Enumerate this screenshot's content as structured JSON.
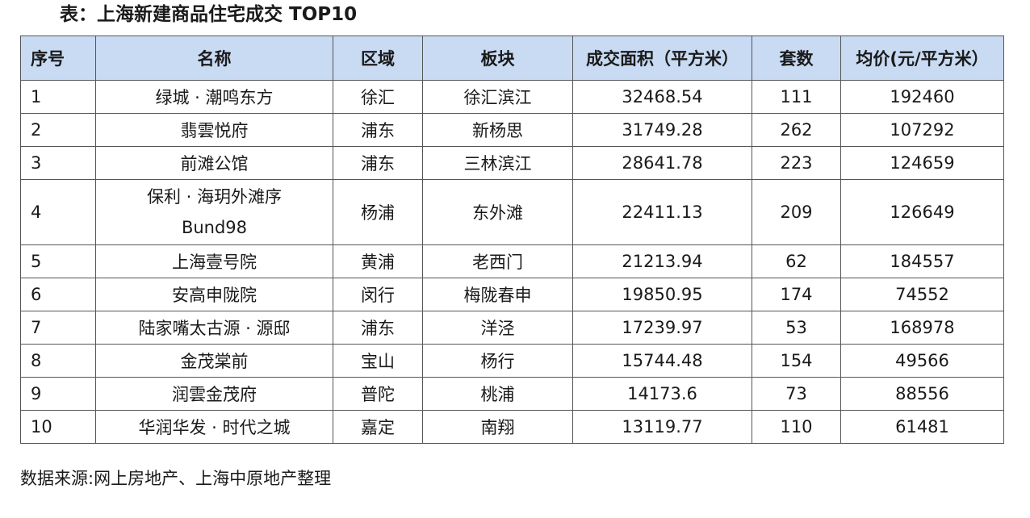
{
  "title": "表：上海新建商品住宅成交 TOP10",
  "headers": {
    "rank": "序号",
    "name": "名称",
    "district": "区域",
    "block": "板块",
    "area": "成交面积（平方米）",
    "units": "套数",
    "price": "均价(元/平方米）"
  },
  "rows": [
    {
      "rank": "1",
      "name": "绿城 · 潮鸣东方",
      "district": "徐汇",
      "block": "徐汇滨江",
      "area": "32468.54",
      "units": "111",
      "price": "192460"
    },
    {
      "rank": "2",
      "name": "翡雲悦府",
      "district": "浦东",
      "block": "新杨思",
      "area": "31749.28",
      "units": "262",
      "price": "107292"
    },
    {
      "rank": "3",
      "name": "前滩公馆",
      "district": "浦东",
      "block": "三林滨江",
      "area": "28641.78",
      "units": "223",
      "price": "124659"
    },
    {
      "rank": "4",
      "name": "保利 · 海玥外滩序",
      "name_line2": "Bund98",
      "district": "杨浦",
      "block": "东外滩",
      "area": "22411.13",
      "units": "209",
      "price": "126649"
    },
    {
      "rank": "5",
      "name": "上海壹号院",
      "district": "黄浦",
      "block": "老西门",
      "area": "21213.94",
      "units": "62",
      "price": "184557"
    },
    {
      "rank": "6",
      "name": "安高申陇院",
      "district": "闵行",
      "block": "梅陇春申",
      "area": "19850.95",
      "units": "174",
      "price": "74552"
    },
    {
      "rank": "7",
      "name": "陆家嘴太古源 · 源邸",
      "district": "浦东",
      "block": "洋泾",
      "area": "17239.97",
      "units": "53",
      "price": "168978"
    },
    {
      "rank": "8",
      "name": "金茂棠前",
      "district": "宝山",
      "block": "杨行",
      "area": "15744.48",
      "units": "154",
      "price": "49566"
    },
    {
      "rank": "9",
      "name": "润雲金茂府",
      "district": "普陀",
      "block": "桃浦",
      "area": "14173.6",
      "units": "73",
      "price": "88556"
    },
    {
      "rank": "10",
      "name": "华润华发 · 时代之城",
      "district": "嘉定",
      "block": "南翔",
      "area": "13119.77",
      "units": "110",
      "price": "61481"
    }
  ],
  "source": "数据来源:网上房地产、上海中原地产整理"
}
